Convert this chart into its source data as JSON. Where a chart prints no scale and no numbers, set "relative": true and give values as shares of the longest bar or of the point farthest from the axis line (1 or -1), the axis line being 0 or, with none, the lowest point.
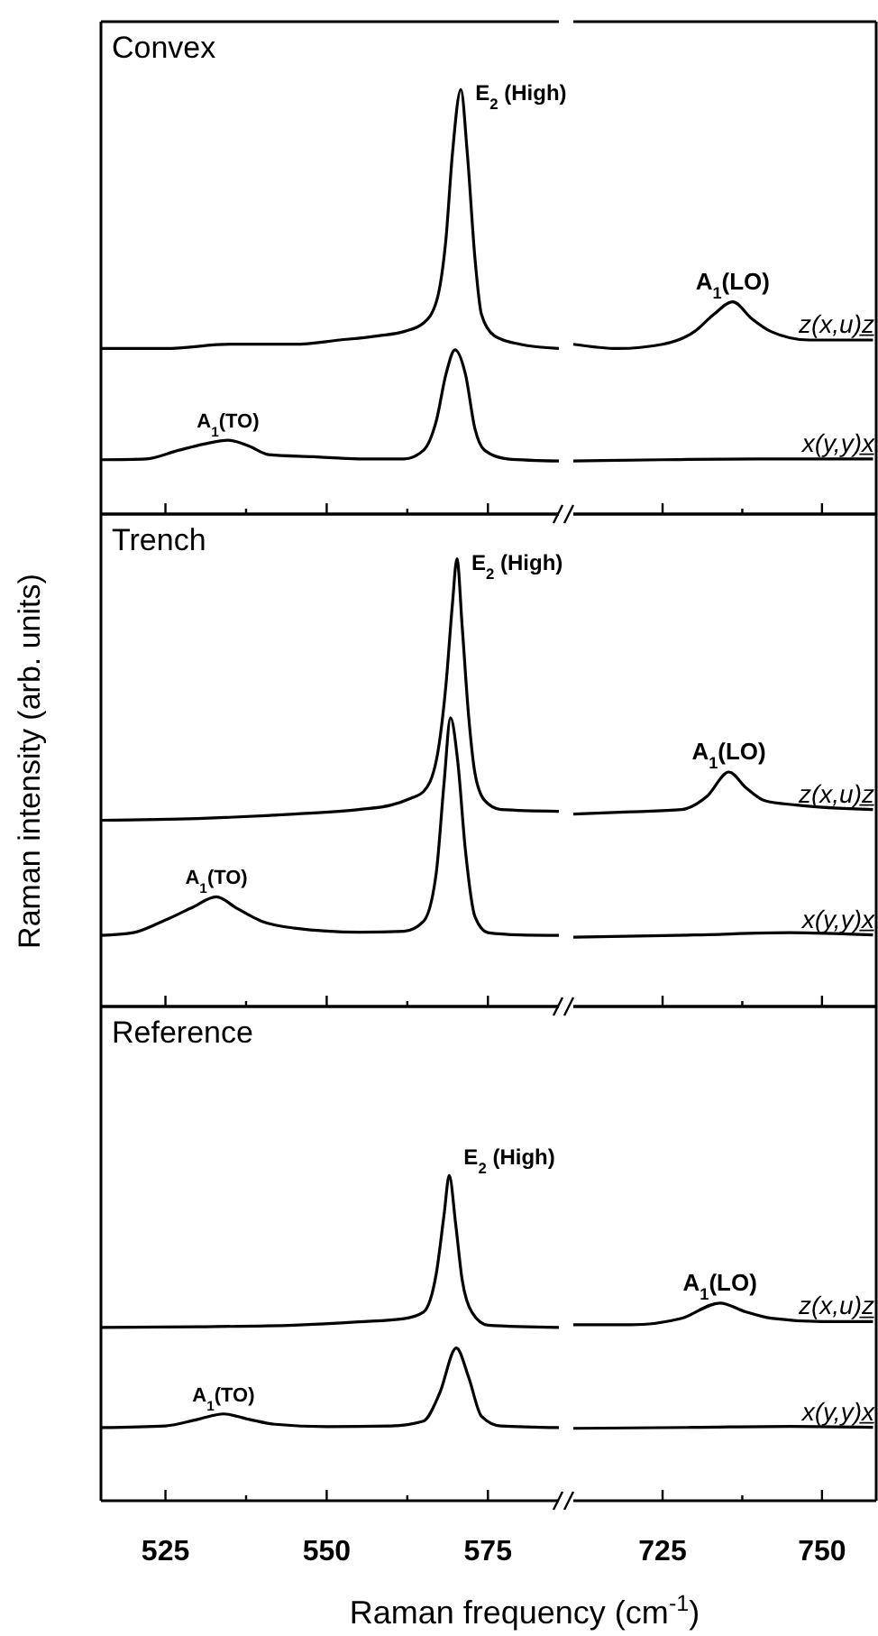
{
  "chart_data": [
    {
      "type": "line",
      "title": "Convex",
      "relative": true,
      "xlim": [
        515,
        586
      ],
      "xticks": [
        525,
        {
          "value": 537.5,
          "label": null
        },
        550,
        {
          "value": 562.5,
          "label": null
        },
        575
      ],
      "tick_labels": false,
      "series": [
        {
          "color": "#000000",
          "x": [
            515,
            525,
            535,
            545,
            552,
            558,
            562,
            565,
            567,
            568.5,
            569.5,
            570.8,
            571.8,
            573,
            574,
            576,
            580,
            586
          ],
          "values": [
            0.39,
            0.39,
            0.4,
            0.4,
            0.41,
            0.42,
            0.43,
            0.45,
            0.5,
            0.65,
            0.85,
            1.0,
            0.85,
            0.6,
            0.47,
            0.42,
            0.4,
            0.39
          ]
        },
        {
          "color": "#000000",
          "x": [
            515,
            522,
            527,
            531,
            534.7,
            538,
            541,
            548,
            555,
            562,
            565,
            567,
            568.5,
            569.9,
            571.5,
            573,
            574.5,
            578,
            586
          ],
          "values": [
            0.128,
            0.13,
            0.15,
            0.165,
            0.174,
            0.16,
            0.14,
            0.135,
            0.13,
            0.13,
            0.15,
            0.22,
            0.33,
            0.387,
            0.33,
            0.2,
            0.15,
            0.13,
            0.125
          ]
        }
      ],
      "annotations": [
        {
          "text": "E$_{2}$ (High)",
          "x": 570.8,
          "y": 1.0
        },
        {
          "text": "A$_{1}$(TO)",
          "x": 534.7,
          "y": 0.174
        }
      ]
    },
    {
      "type": "line",
      "relative": true,
      "xlim": [
        711,
        758.5
      ],
      "xticks": [
        725,
        {
          "value": 737.5,
          "label": null
        },
        750
      ],
      "tick_labels": false,
      "series": [
        {
          "name": "z(x,u)z̲",
          "color": "#000000",
          "x": [
            711,
            718,
            725,
            730,
            733,
            736,
            739,
            742,
            748,
            758
          ],
          "values": [
            0.8,
            0.78,
            0.8,
            0.86,
            0.94,
            1.0,
            0.92,
            0.86,
            0.82,
            0.82
          ]
        },
        {
          "name": "x(y,y)x̲",
          "color": "#000000",
          "x": [
            711,
            725,
            740,
            758
          ],
          "values": [
            0.25,
            0.256,
            0.26,
            0.26
          ]
        }
      ],
      "annotations": [
        {
          "text": "A$_{1}$(LO)",
          "x": 736,
          "y": 1.0
        }
      ]
    },
    {
      "type": "line",
      "title": "Trench",
      "ylabel": "Raman intensity (arb. units)",
      "relative": true,
      "xlim": [
        515,
        586
      ],
      "xticks": [
        525,
        {
          "value": 537.5,
          "label": null
        },
        550,
        {
          "value": 562.5,
          "label": null
        },
        575
      ],
      "tick_labels": false,
      "series": [
        {
          "color": "#000000",
          "x": [
            515,
            530,
            545,
            555,
            560,
            563,
            565,
            567,
            568.5,
            569.5,
            570.2,
            571,
            572,
            573,
            574.5,
            577,
            586
          ],
          "values": [
            0.416,
            0.42,
            0.43,
            0.44,
            0.45,
            0.465,
            0.48,
            0.55,
            0.72,
            0.9,
            1.0,
            0.85,
            0.65,
            0.52,
            0.46,
            0.44,
            0.436
          ]
        },
        {
          "color": "#000000",
          "x": [
            515,
            520,
            524.5,
            529,
            532.9,
            536,
            540,
            545,
            555,
            562,
            565,
            567,
            568.2,
            569.2,
            570.3,
            571.5,
            573,
            575,
            580,
            586
          ],
          "values": [
            0.159,
            0.165,
            0.19,
            0.22,
            0.245,
            0.22,
            0.19,
            0.175,
            0.166,
            0.168,
            0.19,
            0.3,
            0.5,
            0.645,
            0.55,
            0.35,
            0.2,
            0.165,
            0.16,
            0.159
          ]
        }
      ],
      "annotations": [
        {
          "text": "E$_{2}$ (High)",
          "x": 570.2,
          "y": 1.0
        },
        {
          "text": "A$_{1}$(TO)",
          "x": 532.9,
          "y": 0.245
        }
      ]
    },
    {
      "type": "line",
      "relative": true,
      "xlim": [
        711,
        758.5
      ],
      "xticks": [
        725,
        {
          "value": 737.5,
          "label": null
        },
        750
      ],
      "tick_labels": false,
      "series": [
        {
          "name": "z(x,u)z̲",
          "color": "#000000",
          "x": [
            711,
            720,
            728,
            732,
            735.4,
            738,
            741,
            746,
            758
          ],
          "values": [
            0.821,
            0.83,
            0.84,
            0.897,
            1.0,
            0.935,
            0.878,
            0.859,
            0.84
          ]
        },
        {
          "name": "x(y,y)x̲",
          "color": "#000000",
          "x": [
            711,
            730,
            745,
            758
          ],
          "values": [
            0.296,
            0.305,
            0.315,
            0.305
          ]
        }
      ],
      "annotations": [
        {
          "text": "A$_{1}$(LO)",
          "x": 735.4,
          "y": 1.0
        }
      ]
    },
    {
      "type": "line",
      "title": "Reference",
      "xlabel": "Raman frequency (cm$^{-1}$)",
      "relative": true,
      "xlim": [
        515,
        586
      ],
      "xticks": [
        525,
        {
          "value": 537.5,
          "label": null
        },
        550,
        {
          "value": 562.5,
          "label": null
        },
        575
      ],
      "tick_labels": "x",
      "series": [
        {
          "color": "#000000",
          "x": [
            515,
            530,
            545,
            555,
            562,
            565,
            567,
            568.2,
            569,
            570,
            571,
            572.5,
            575,
            586
          ],
          "values": [
            0.533,
            0.535,
            0.54,
            0.55,
            0.56,
            0.58,
            0.7,
            0.88,
            1.0,
            0.85,
            0.68,
            0.58,
            0.54,
            0.533
          ]
        },
        {
          "color": "#000000",
          "x": [
            515,
            525,
            530,
            534,
            538,
            542,
            550,
            560,
            565,
            567.5,
            570.1,
            572,
            574,
            577,
            586
          ],
          "values": [
            0.225,
            0.23,
            0.25,
            0.267,
            0.25,
            0.235,
            0.228,
            0.23,
            0.245,
            0.33,
            0.47,
            0.38,
            0.26,
            0.23,
            0.225
          ]
        }
      ],
      "annotations": [
        {
          "text": "E$_{2}$ (High)",
          "x": 569,
          "y": 1.0
        },
        {
          "text": "A$_{1}$(TO)",
          "x": 534,
          "y": 0.267
        }
      ]
    },
    {
      "type": "line",
      "relative": true,
      "xlim": [
        711,
        758.5
      ],
      "xticks": [
        725,
        {
          "value": 737.5,
          "label": null
        },
        750
      ],
      "tick_labels": "x",
      "series": [
        {
          "name": "z(x,u)z̲",
          "color": "#000000",
          "x": [
            711,
            720,
            728,
            734,
            738,
            742,
            750,
            758
          ],
          "values": [
            0.89,
            0.89,
            0.923,
            1.0,
            0.956,
            0.923,
            0.906,
            0.906
          ]
        },
        {
          "name": "x(y,y)x̲",
          "color": "#000000",
          "x": [
            711,
            730,
            745,
            758
          ],
          "values": [
            0.366,
            0.371,
            0.376,
            0.371
          ]
        }
      ],
      "annotations": [
        {
          "text": "A$_{1}$(LO)",
          "x": 734,
          "y": 1.0
        }
      ]
    }
  ]
}
